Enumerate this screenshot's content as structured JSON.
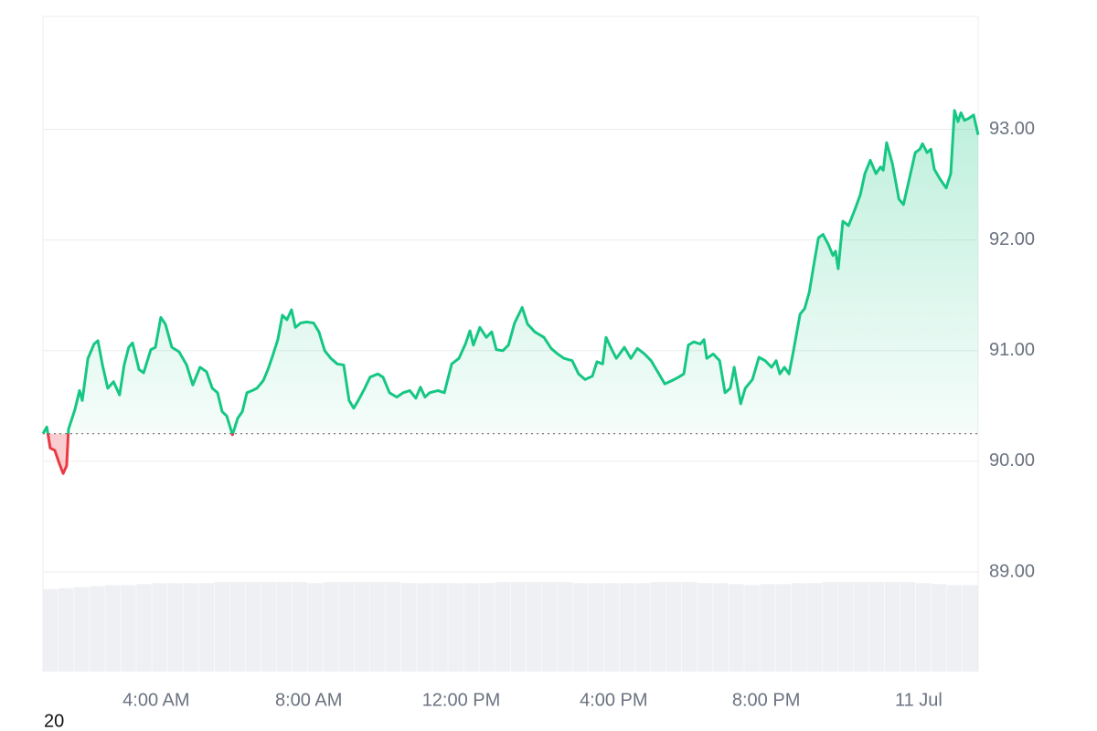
{
  "chart_data": {
    "type": "line",
    "x": [
      1.03,
      1.13,
      1.22,
      1.34,
      1.46,
      1.56,
      1.65,
      1.7,
      1.87,
      1.99,
      2.06,
      2.21,
      2.37,
      2.47,
      2.59,
      2.73,
      2.88,
      3.04,
      3.16,
      3.28,
      3.38,
      3.55,
      3.67,
      3.86,
      3.98,
      4.12,
      4.24,
      4.41,
      4.6,
      4.8,
      4.96,
      5.15,
      5.32,
      5.47,
      5.61,
      5.73,
      5.85,
      6.0,
      6.14,
      6.26,
      6.38,
      6.52,
      6.64,
      6.81,
      6.93,
      7.05,
      7.19,
      7.31,
      7.43,
      7.55,
      7.65,
      7.79,
      7.94,
      8.13,
      8.27,
      8.42,
      8.58,
      8.75,
      8.92,
      9.06,
      9.18,
      9.3,
      9.47,
      9.61,
      9.81,
      9.95,
      10.12,
      10.31,
      10.48,
      10.65,
      10.81,
      10.93,
      11.05,
      11.17,
      11.39,
      11.56,
      11.75,
      11.94,
      12.11,
      12.23,
      12.32,
      12.49,
      12.66,
      12.8,
      12.92,
      13.09,
      13.24,
      13.4,
      13.6,
      13.74,
      13.93,
      14.17,
      14.36,
      14.53,
      14.7,
      14.91,
      15.08,
      15.25,
      15.44,
      15.56,
      15.71,
      15.8,
      15.92,
      16.07,
      16.28,
      16.45,
      16.62,
      16.81,
      16.98,
      17.17,
      17.34,
      17.53,
      17.7,
      17.84,
      17.96,
      18.1,
      18.27,
      18.37,
      18.44,
      18.61,
      18.78,
      18.92,
      19.06,
      19.16,
      19.33,
      19.45,
      19.64,
      19.81,
      19.97,
      20.14,
      20.26,
      20.36,
      20.48,
      20.6,
      20.72,
      20.89,
      21.01,
      21.13,
      21.25,
      21.37,
      21.49,
      21.63,
      21.75,
      21.82,
      21.89,
      22.01,
      22.16,
      22.32,
      22.47,
      22.59,
      22.73,
      22.88,
      23.0,
      23.07,
      23.16,
      23.31,
      23.48,
      23.6,
      23.76,
      23.91,
      24.03,
      24.1,
      24.22,
      24.32,
      24.41,
      24.56,
      24.72,
      24.84,
      24.94,
      25.03,
      25.11,
      25.2,
      25.32,
      25.44,
      25.56
    ],
    "values": [
      90.25,
      90.31,
      90.12,
      90.1,
      89.98,
      89.89,
      89.96,
      90.29,
      90.47,
      90.64,
      90.55,
      90.93,
      91.06,
      91.09,
      90.87,
      90.66,
      90.72,
      90.6,
      90.87,
      91.03,
      91.07,
      90.83,
      90.8,
      91.01,
      91.03,
      91.3,
      91.24,
      91.03,
      90.99,
      90.87,
      90.69,
      90.85,
      90.81,
      90.66,
      90.62,
      90.45,
      90.41,
      90.24,
      90.39,
      90.45,
      90.62,
      90.64,
      90.66,
      90.73,
      90.83,
      90.95,
      91.1,
      91.32,
      91.28,
      91.37,
      91.21,
      91.25,
      91.26,
      91.25,
      91.17,
      91.0,
      90.93,
      90.88,
      90.87,
      90.55,
      90.48,
      90.55,
      90.66,
      90.76,
      90.79,
      90.76,
      90.62,
      90.58,
      90.62,
      90.64,
      90.57,
      90.67,
      90.58,
      90.62,
      90.64,
      90.62,
      90.88,
      90.93,
      91.06,
      91.18,
      91.05,
      91.21,
      91.12,
      91.17,
      91.01,
      91.0,
      91.05,
      91.25,
      91.39,
      91.24,
      91.17,
      91.12,
      91.02,
      90.97,
      90.93,
      90.91,
      90.79,
      90.74,
      90.77,
      90.9,
      90.88,
      91.12,
      91.03,
      90.93,
      91.03,
      90.93,
      91.02,
      90.97,
      90.91,
      90.8,
      90.7,
      90.73,
      90.76,
      90.79,
      91.05,
      91.08,
      91.06,
      91.1,
      90.93,
      90.97,
      90.91,
      90.62,
      90.66,
      90.85,
      90.52,
      90.66,
      90.74,
      90.94,
      90.91,
      90.85,
      90.91,
      90.79,
      90.85,
      90.79,
      91.01,
      91.33,
      91.38,
      91.53,
      91.78,
      92.02,
      92.05,
      91.96,
      91.86,
      91.9,
      91.74,
      92.17,
      92.13,
      92.27,
      92.41,
      92.6,
      92.72,
      92.6,
      92.66,
      92.63,
      92.88,
      92.69,
      92.37,
      92.32,
      92.56,
      92.79,
      92.82,
      92.87,
      92.79,
      92.82,
      92.64,
      92.55,
      92.47,
      92.6,
      93.17,
      93.07,
      93.15,
      93.08,
      93.1,
      93.13,
      92.95
    ],
    "baseline": 90.25,
    "color_up": "#16c784",
    "color_down": "#ea3943",
    "xlim": [
      1.03,
      25.56
    ],
    "xticks": [
      {
        "value": 4,
        "label": "4:00 AM"
      },
      {
        "value": 8,
        "label": "8:00 AM"
      },
      {
        "value": 12,
        "label": "12:00 PM"
      },
      {
        "value": 16,
        "label": "4:00 PM"
      },
      {
        "value": 20,
        "label": "8:00 PM"
      },
      {
        "value": 24,
        "label": "11 Jul"
      }
    ],
    "ylim": [
      88.1,
      94.02
    ],
    "yticks": [
      {
        "value": 89,
        "label": "89.00"
      },
      {
        "value": 90,
        "label": "90.00"
      },
      {
        "value": 91,
        "label": "91.00"
      },
      {
        "value": 92,
        "label": "92.00"
      },
      {
        "value": 93,
        "label": "93.00"
      }
    ],
    "grid": true,
    "volume": {
      "color": "#eef0f3",
      "ylim": [
        0,
        100
      ],
      "values": [
        82,
        83,
        84,
        85,
        86,
        86,
        87,
        88,
        88,
        88,
        88,
        89,
        89,
        89,
        89,
        89,
        89,
        88,
        89,
        89,
        89,
        89,
        89,
        88,
        88,
        88,
        88,
        88,
        88,
        89,
        89,
        89,
        89,
        89,
        88,
        88,
        88,
        88,
        88,
        89,
        89,
        89,
        88,
        88,
        87,
        86,
        87,
        87,
        88,
        88,
        89,
        89,
        89,
        89,
        89,
        89,
        88,
        87,
        86,
        86
      ]
    },
    "annotation": "20"
  }
}
